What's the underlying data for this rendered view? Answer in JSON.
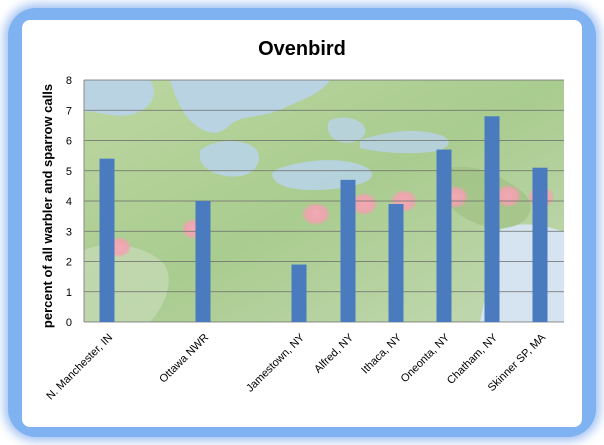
{
  "chart_data": {
    "type": "bar",
    "title": "Ovenbird",
    "ylabel": "percent of all warbler and sparrow calls",
    "xlabel": "",
    "ylim": [
      0,
      8
    ],
    "yticks": [
      "0",
      "1",
      "2",
      "3",
      "4",
      "5",
      "6",
      "7",
      "8"
    ],
    "categories": [
      "N. Manchester, IN",
      "Ottawa NWR",
      "Jamestown, NY",
      "Alfred, NY",
      "Ithaca, NY",
      "Oneonta, NY",
      "Chatham, NY",
      "Skinner SP, MA"
    ],
    "values": [
      5.4,
      4.0,
      1.9,
      4.7,
      3.9,
      5.7,
      6.8,
      5.1
    ],
    "grid": true,
    "bar_color": "#4a7bbf",
    "background": "map of the northeastern United States and Great Lakes with pink markers at each site"
  },
  "colors": {
    "frame": "#7fb2f0",
    "bar": "#4a7bbf",
    "marker": "#f4a0b0",
    "land": "#b7d59a",
    "water": "#b9d3ea"
  }
}
